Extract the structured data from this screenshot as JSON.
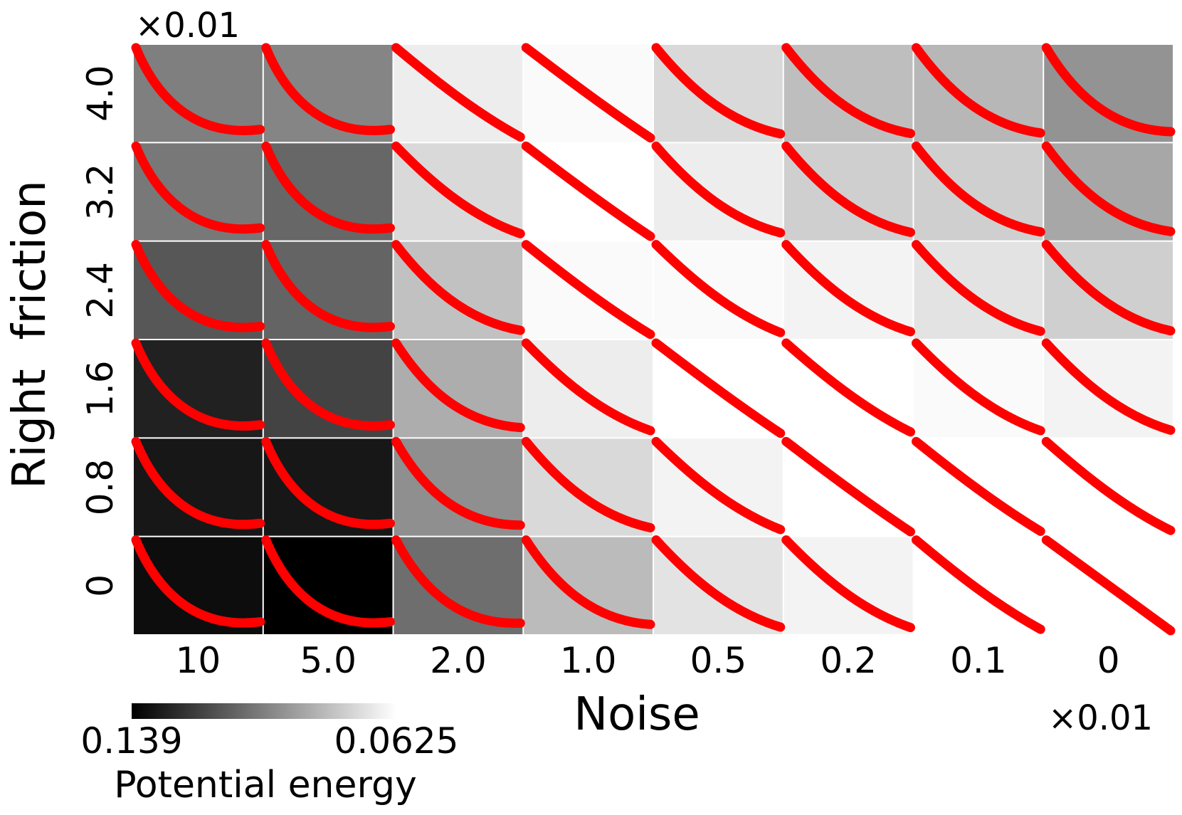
{
  "chart_data": {
    "type": "heatmap",
    "title": "",
    "xlabel": "Noise",
    "ylabel": "Right  friction",
    "x_categories": [
      "10",
      "5.0",
      "2.0",
      "1.0",
      "0.5",
      "0.2",
      "0.1",
      "0"
    ],
    "y_categories": [
      "4.0",
      "3.2",
      "2.4",
      "1.6",
      "0.8",
      "0"
    ],
    "x_multiplier": "×0.01",
    "y_multiplier": "×0.01",
    "colorbar": {
      "label": "Potential energy",
      "min_label": "0.139",
      "max_label": "0.0625",
      "min_value": 0.139,
      "max_value": 0.0625,
      "cmap": "gray (black = 0.139, white = 0.0625)"
    },
    "potential_energy": [
      [
        0.101,
        0.099,
        0.068,
        0.064,
        0.074,
        0.082,
        0.084,
        0.095
      ],
      [
        0.103,
        0.108,
        0.074,
        0.0625,
        0.068,
        0.077,
        0.077,
        0.089
      ],
      [
        0.113,
        0.109,
        0.081,
        0.064,
        0.064,
        0.066,
        0.071,
        0.077
      ],
      [
        0.129,
        0.119,
        0.087,
        0.068,
        0.0625,
        0.0625,
        0.064,
        0.066
      ],
      [
        0.132,
        0.132,
        0.096,
        0.074,
        0.066,
        0.0625,
        0.0625,
        0.0625
      ],
      [
        0.135,
        0.139,
        0.106,
        0.083,
        0.071,
        0.066,
        0.0625,
        0.0625
      ]
    ],
    "trajectory_curvature": [
      [
        1.0,
        1.0,
        0.15,
        0.05,
        0.5,
        0.55,
        0.6,
        0.75
      ],
      [
        1.0,
        1.0,
        0.35,
        0.05,
        0.45,
        0.5,
        0.55,
        0.6
      ],
      [
        1.0,
        1.0,
        0.55,
        0.1,
        0.3,
        0.4,
        0.45,
        0.5
      ],
      [
        1.0,
        1.0,
        0.7,
        0.35,
        0.05,
        0.2,
        0.35,
        0.4
      ],
      [
        1.0,
        1.0,
        0.8,
        0.5,
        0.3,
        0.05,
        0.1,
        0.2
      ],
      [
        1.0,
        1.0,
        0.85,
        0.7,
        0.4,
        0.35,
        0.15,
        0.0
      ]
    ],
    "trajectory_color": "#ff0000",
    "grid_line_color": "#ffffff"
  }
}
